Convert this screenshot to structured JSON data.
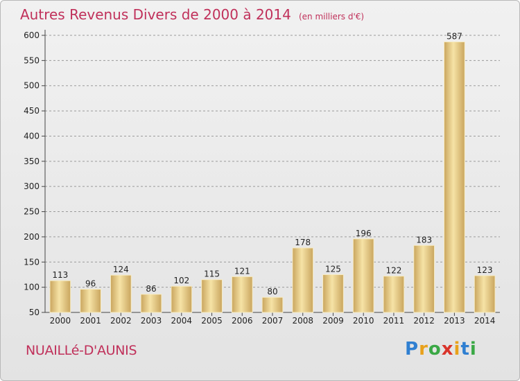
{
  "header": {
    "title": "Autres Revenus Divers de 2000 à 2014",
    "unit": "(en milliers d'€)"
  },
  "footer": {
    "town": "NUAILLé-D'AUNIS",
    "logo_letters": [
      "P",
      "r",
      "o",
      "x",
      "i",
      "t",
      "i"
    ],
    "logo_colors": [
      "#2f7fd1",
      "#e8a11b",
      "#3aa845",
      "#d9342b",
      "#e8a11b",
      "#2f7fd1",
      "#3aa845"
    ]
  },
  "colors": {
    "title": "#c0305a",
    "bar_light": "#f6e3a6",
    "bar_dark": "#c9a55e",
    "grid": "#9a9a9a"
  },
  "chart_data": {
    "type": "bar",
    "title": "Autres Revenus Divers de 2000 à 2014",
    "subtitle": "(en milliers d'€)",
    "xlabel": "",
    "ylabel": "",
    "ylim": [
      50,
      600
    ],
    "yticks": [
      50,
      100,
      150,
      200,
      250,
      300,
      350,
      400,
      450,
      500,
      550,
      600
    ],
    "grid": true,
    "categories": [
      "2000",
      "2001",
      "2002",
      "2003",
      "2004",
      "2005",
      "2006",
      "2007",
      "2008",
      "2009",
      "2010",
      "2011",
      "2012",
      "2013",
      "2014"
    ],
    "values": [
      113,
      96,
      124,
      86,
      102,
      115,
      121,
      80,
      178,
      125,
      196,
      122,
      183,
      587,
      123
    ]
  }
}
